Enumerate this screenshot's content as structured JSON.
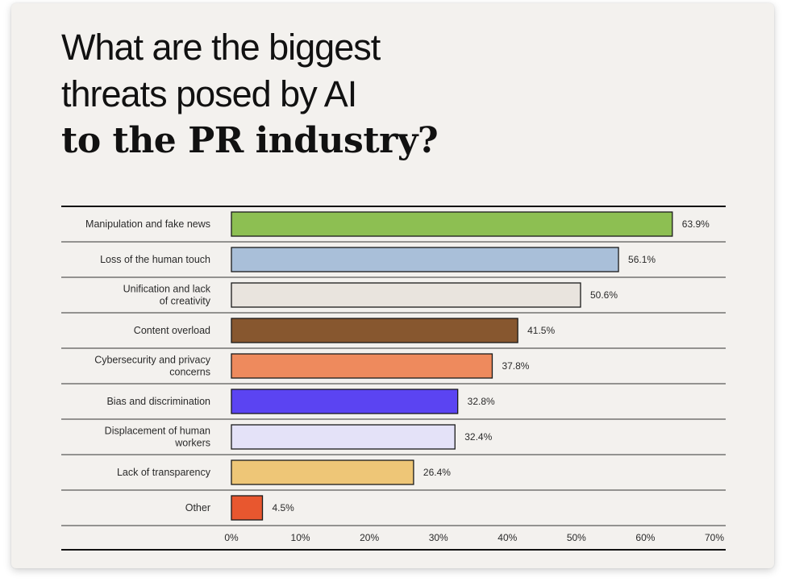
{
  "title": {
    "line1": "What are the biggest",
    "line2": "threats posed by AI",
    "line3": "to the PR industry?"
  },
  "chart_data": {
    "type": "bar",
    "orientation": "horizontal",
    "title": "What are the biggest threats posed by AI to the PR industry?",
    "categories": [
      [
        "Manipulation and fake news"
      ],
      [
        "Loss of the human touch"
      ],
      [
        "Unification and lack",
        "of creativity"
      ],
      [
        "Content overload"
      ],
      [
        "Cybersecurity and privacy",
        "concerns"
      ],
      [
        "Bias and discrimination"
      ],
      [
        "Displacement of human",
        "workers"
      ],
      [
        "Lack of transparency"
      ],
      [
        "Other"
      ]
    ],
    "values": [
      63.9,
      56.1,
      50.6,
      41.5,
      37.8,
      32.8,
      32.4,
      26.4,
      4.5
    ],
    "value_labels": [
      "63.9%",
      "56.1%",
      "50.6%",
      "41.5%",
      "37.8%",
      "32.8%",
      "32.4%",
      "26.4%",
      "4.5%"
    ],
    "colors": [
      "#8dbf52",
      "#a9bfd9",
      "#e9e4de",
      "#87572f",
      "#ee8a5d",
      "#5b44f2",
      "#e4e2f8",
      "#eec677",
      "#e8572f"
    ],
    "xlim": [
      0,
      70
    ],
    "xticks": [
      0,
      10,
      20,
      30,
      40,
      50,
      60,
      70
    ],
    "xtick_labels": [
      "0%",
      "10%",
      "20%",
      "30%",
      "40%",
      "50%",
      "60%",
      "70%"
    ],
    "xlabel": "",
    "ylabel": "",
    "grid": false,
    "legend": "none"
  }
}
